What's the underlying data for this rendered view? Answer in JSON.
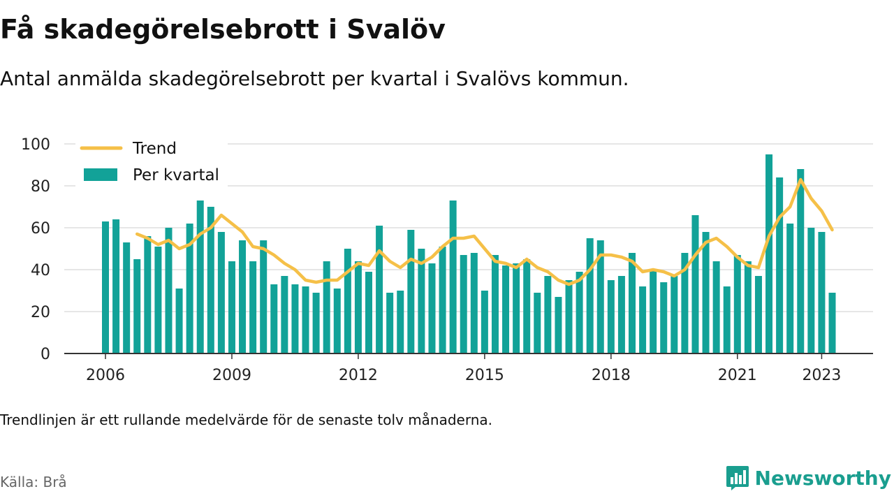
{
  "header": {
    "title": "Få skadegörelsebrott i Svalöv",
    "subtitle": "Antal anmälda skadegörelsebrott per kvartal i Svalövs kommun."
  },
  "footer": {
    "note": "Trendlinjen är ett rullande medelvärde för de senaste tolv månaderna.",
    "source": "Källa: Brå",
    "brand": "Newsworthy"
  },
  "colors": {
    "bars": "#12a298",
    "trend": "#f5c048",
    "grid": "#dddddd",
    "axis": "#333333",
    "brand": "#1a9e8f"
  },
  "chart_data": {
    "type": "bar",
    "x_start": "2006 Q1",
    "x_tick_labels": [
      "2006",
      "2009",
      "2012",
      "2015",
      "2018",
      "2021",
      "2023"
    ],
    "y_ticks": [
      0,
      20,
      40,
      60,
      80,
      100
    ],
    "ylim": [
      0,
      100
    ],
    "grid": true,
    "legend_position": "top-left",
    "series": [
      {
        "name": "Per kvartal",
        "kind": "bar",
        "values": [
          63,
          64,
          53,
          45,
          56,
          51,
          60,
          31,
          62,
          73,
          70,
          58,
          44,
          54,
          44,
          54,
          33,
          37,
          33,
          32,
          29,
          44,
          31,
          50,
          44,
          39,
          61,
          29,
          30,
          59,
          50,
          43,
          51,
          73,
          47,
          48,
          30,
          47,
          42,
          43,
          45,
          29,
          37,
          27,
          35,
          39,
          55,
          54,
          35,
          37,
          48,
          32,
          40,
          34,
          37,
          48,
          66,
          58,
          44,
          32,
          47,
          44,
          37,
          95,
          84,
          62,
          88,
          60,
          58,
          29
        ]
      },
      {
        "name": "Trend",
        "kind": "line",
        "values": [
          null,
          null,
          null,
          57,
          55,
          52,
          54,
          50,
          52,
          57,
          60,
          66,
          62,
          58,
          51,
          50,
          47,
          43,
          40,
          35,
          34,
          35,
          35,
          39,
          43,
          42,
          49,
          44,
          41,
          45,
          43,
          46,
          51,
          55,
          55,
          56,
          50,
          44,
          43,
          41,
          45,
          41,
          39,
          35,
          33,
          35,
          40,
          47,
          47,
          46,
          44,
          39,
          40,
          39,
          37,
          40,
          47,
          53,
          55,
          51,
          46,
          42,
          41,
          56,
          65,
          70,
          83,
          74,
          68,
          59
        ]
      }
    ]
  }
}
